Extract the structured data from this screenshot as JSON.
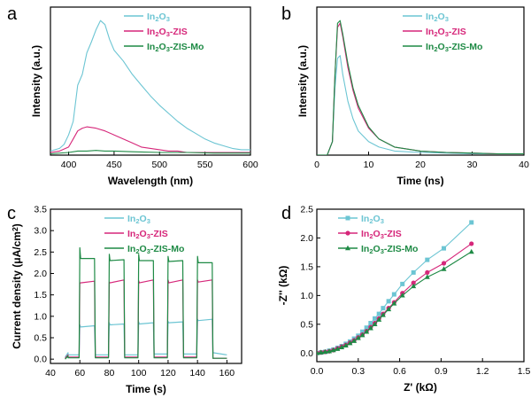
{
  "colors": {
    "in2o3": "#6cc5d3",
    "zis": "#d6277a",
    "mo": "#1e8a45",
    "axis": "#000000"
  },
  "chart_data": [
    {
      "panel": "a",
      "type": "line",
      "xlabel": "Wavelength (nm)",
      "ylabel": "Intensity (a.u.)",
      "xlim": [
        380,
        600
      ],
      "ylim": [
        0,
        1.1
      ],
      "x_ticks": [
        400,
        450,
        500,
        550,
        600
      ],
      "y_ticks": [],
      "legend_position": "top-right",
      "series": [
        {
          "name": "In₂O₃",
          "color_key": "in2o3",
          "x": [
            380,
            390,
            395,
            400,
            405,
            410,
            415,
            420,
            425,
            430,
            435,
            440,
            445,
            450,
            460,
            470,
            480,
            490,
            500,
            510,
            520,
            530,
            540,
            550,
            560,
            570,
            580,
            590,
            600
          ],
          "y": [
            0.03,
            0.05,
            0.08,
            0.15,
            0.25,
            0.52,
            0.6,
            0.76,
            0.84,
            0.93,
            1.0,
            0.97,
            0.86,
            0.78,
            0.7,
            0.6,
            0.52,
            0.44,
            0.37,
            0.31,
            0.25,
            0.2,
            0.16,
            0.12,
            0.09,
            0.07,
            0.05,
            0.04,
            0.04
          ]
        },
        {
          "name": "In₂O₃-ZIS",
          "color_key": "zis",
          "x": [
            380,
            390,
            400,
            405,
            410,
            415,
            420,
            430,
            440,
            450,
            460,
            470,
            480,
            490,
            500,
            510,
            520,
            530,
            540,
            560,
            580,
            600
          ],
          "y": [
            0.02,
            0.03,
            0.06,
            0.12,
            0.18,
            0.2,
            0.21,
            0.2,
            0.18,
            0.15,
            0.12,
            0.09,
            0.06,
            0.05,
            0.04,
            0.03,
            0.03,
            0.02,
            0.02,
            0.02,
            0.02,
            0.02
          ]
        },
        {
          "name": "In₂O₃-ZIS-Mo",
          "color_key": "mo",
          "x": [
            380,
            400,
            410,
            420,
            430,
            440,
            450,
            470,
            500,
            530,
            560,
            600
          ],
          "y": [
            0.01,
            0.02,
            0.03,
            0.03,
            0.035,
            0.03,
            0.03,
            0.025,
            0.02,
            0.02,
            0.015,
            0.015
          ]
        }
      ]
    },
    {
      "panel": "b",
      "type": "line",
      "xlabel": "Time (ns)",
      "ylabel": "Intensity (a.u.)",
      "xlim": [
        0,
        40
      ],
      "ylim": [
        0,
        1.1
      ],
      "x_ticks": [
        0,
        10,
        20,
        30,
        40
      ],
      "y_ticks": [],
      "legend_position": "top-right",
      "series": [
        {
          "name": "In₂O₃",
          "color_key": "in2o3",
          "x": [
            0,
            2,
            3,
            3.5,
            4,
            4.5,
            5,
            6,
            7,
            8,
            10,
            12,
            15,
            20,
            25,
            30,
            35,
            40
          ],
          "y": [
            0,
            0,
            0.1,
            0.5,
            0.72,
            0.74,
            0.6,
            0.4,
            0.27,
            0.18,
            0.1,
            0.06,
            0.03,
            0.02,
            0.015,
            0.01,
            0.01,
            0.01
          ]
        },
        {
          "name": "In₂O₃-ZIS",
          "color_key": "zis",
          "x": [
            0,
            2,
            3,
            3.5,
            4,
            4.5,
            5,
            6,
            7,
            8,
            10,
            12,
            15,
            20,
            25,
            30,
            35,
            40
          ],
          "y": [
            0,
            0,
            0.1,
            0.6,
            0.95,
            0.98,
            0.88,
            0.65,
            0.48,
            0.35,
            0.2,
            0.12,
            0.06,
            0.03,
            0.02,
            0.015,
            0.01,
            0.01
          ]
        },
        {
          "name": "In₂O₃-ZIS-Mo",
          "color_key": "mo",
          "x": [
            0,
            2,
            3,
            3.5,
            4,
            4.5,
            5,
            6,
            7,
            8,
            10,
            12,
            15,
            20,
            25,
            30,
            35,
            40
          ],
          "y": [
            0,
            0,
            0.1,
            0.6,
            0.98,
            1.0,
            0.9,
            0.68,
            0.5,
            0.37,
            0.21,
            0.12,
            0.06,
            0.03,
            0.02,
            0.015,
            0.01,
            0.01
          ]
        }
      ]
    },
    {
      "panel": "c",
      "type": "line",
      "xlabel": "Time (s)",
      "ylabel": "Current density (μA/cm²)",
      "xlim": [
        40,
        170
      ],
      "ylim": [
        -0.1,
        3.5
      ],
      "x_ticks": [
        40,
        60,
        80,
        100,
        120,
        140,
        160
      ],
      "y_ticks": [
        0.0,
        0.5,
        1.0,
        1.5,
        2.0,
        2.5,
        3.0,
        3.5
      ],
      "legend_position": "top-right",
      "series": [
        {
          "name": "In₂O₃",
          "color_key": "in2o3",
          "x": [
            50,
            52,
            52,
            59.5,
            60,
            60.5,
            70,
            70.5,
            79.5,
            80,
            80.5,
            90,
            90.5,
            99.5,
            100,
            100.5,
            110,
            110.5,
            119.5,
            120,
            120.5,
            130,
            130.5,
            139.5,
            140,
            140.5,
            150,
            150.5,
            160
          ],
          "y": [
            0.05,
            0.15,
            0.1,
            0.1,
            0.8,
            0.75,
            0.78,
            0.1,
            0.1,
            0.85,
            0.8,
            0.82,
            0.1,
            0.1,
            0.87,
            0.82,
            0.85,
            0.12,
            0.12,
            0.88,
            0.85,
            0.87,
            0.12,
            0.12,
            0.93,
            0.9,
            0.93,
            0.15,
            0.1
          ]
        },
        {
          "name": "In₂O₃-ZIS",
          "color_key": "zis",
          "x": [
            50,
            52,
            52,
            59.5,
            60,
            60.5,
            70,
            70.5,
            79.5,
            80,
            80.5,
            90,
            90.5,
            99.5,
            100,
            100.5,
            110,
            110.5,
            119.5,
            120,
            120.5,
            130,
            130.5,
            139.5,
            140,
            140.5,
            150,
            150.5,
            160
          ],
          "y": [
            0.02,
            0.1,
            0.05,
            0.05,
            1.78,
            1.78,
            1.82,
            0.05,
            0.05,
            1.8,
            1.78,
            1.85,
            0.05,
            0.05,
            1.83,
            1.78,
            1.85,
            0.05,
            0.05,
            1.85,
            1.78,
            1.85,
            0.05,
            0.05,
            1.85,
            1.8,
            1.85,
            0.02,
            0.02
          ]
        },
        {
          "name": "In₂O₃-ZIS-Mo",
          "color_key": "mo",
          "x": [
            50,
            52,
            52,
            59.5,
            60,
            60.5,
            70,
            70.5,
            79.5,
            80,
            80.5,
            90,
            90.5,
            99.5,
            100,
            100.5,
            110,
            110.5,
            119.5,
            120,
            120.5,
            130,
            130.5,
            139.5,
            140,
            140.5,
            150,
            150.5,
            160
          ],
          "y": [
            0.0,
            0.08,
            0.03,
            0.03,
            2.6,
            2.35,
            2.35,
            0.03,
            0.03,
            2.45,
            2.3,
            2.32,
            0.03,
            0.03,
            2.45,
            2.3,
            2.3,
            0.03,
            0.03,
            2.4,
            2.28,
            2.3,
            0.03,
            0.03,
            2.4,
            2.25,
            2.25,
            0.02,
            0.02
          ]
        }
      ]
    },
    {
      "panel": "d",
      "type": "scatter",
      "xlabel": "Z' (kΩ)",
      "ylabel": "-Z'' (kΩ)",
      "xlim": [
        0.0,
        1.5
      ],
      "ylim": [
        -0.15,
        2.5
      ],
      "x_ticks": [
        0.0,
        0.3,
        0.6,
        0.9,
        1.2,
        1.5
      ],
      "y_ticks": [
        0.0,
        0.5,
        1.0,
        1.5,
        2.0,
        2.5
      ],
      "legend_position": "top-left",
      "series": [
        {
          "name": "In₂O₃",
          "color_key": "in2o3",
          "marker": "square",
          "x": [
            0.0,
            0.03,
            0.06,
            0.09,
            0.12,
            0.15,
            0.18,
            0.21,
            0.24,
            0.27,
            0.3,
            0.33,
            0.36,
            0.39,
            0.42,
            0.45,
            0.48,
            0.52,
            0.56,
            0.62,
            0.7,
            0.8,
            0.92,
            1.12
          ],
          "y": [
            0.0,
            0.01,
            0.02,
            0.04,
            0.06,
            0.09,
            0.12,
            0.16,
            0.2,
            0.25,
            0.3,
            0.37,
            0.44,
            0.52,
            0.6,
            0.68,
            0.78,
            0.9,
            1.02,
            1.2,
            1.4,
            1.62,
            1.82,
            2.27
          ]
        },
        {
          "name": "In₂O₃-ZIS",
          "color_key": "zis",
          "marker": "circle",
          "x": [
            0.0,
            0.03,
            0.06,
            0.09,
            0.12,
            0.15,
            0.18,
            0.21,
            0.24,
            0.27,
            0.3,
            0.33,
            0.36,
            0.39,
            0.42,
            0.45,
            0.48,
            0.52,
            0.56,
            0.62,
            0.7,
            0.8,
            0.92,
            1.12
          ],
          "y": [
            0.0,
            0.01,
            0.02,
            0.03,
            0.05,
            0.08,
            0.11,
            0.14,
            0.18,
            0.22,
            0.27,
            0.32,
            0.38,
            0.45,
            0.52,
            0.6,
            0.68,
            0.78,
            0.88,
            1.04,
            1.22,
            1.4,
            1.56,
            1.9
          ]
        },
        {
          "name": "In₂O₃-ZIS-Mo",
          "color_key": "mo",
          "marker": "triangle",
          "x": [
            0.0,
            0.03,
            0.06,
            0.09,
            0.12,
            0.15,
            0.18,
            0.21,
            0.24,
            0.27,
            0.3,
            0.33,
            0.36,
            0.39,
            0.42,
            0.45,
            0.48,
            0.52,
            0.56,
            0.62,
            0.7,
            0.8,
            0.92,
            1.12
          ],
          "y": [
            0.0,
            0.01,
            0.02,
            0.03,
            0.05,
            0.07,
            0.1,
            0.13,
            0.17,
            0.21,
            0.26,
            0.31,
            0.37,
            0.43,
            0.5,
            0.58,
            0.66,
            0.76,
            0.86,
            1.0,
            1.16,
            1.32,
            1.46,
            1.76
          ]
        }
      ]
    }
  ]
}
